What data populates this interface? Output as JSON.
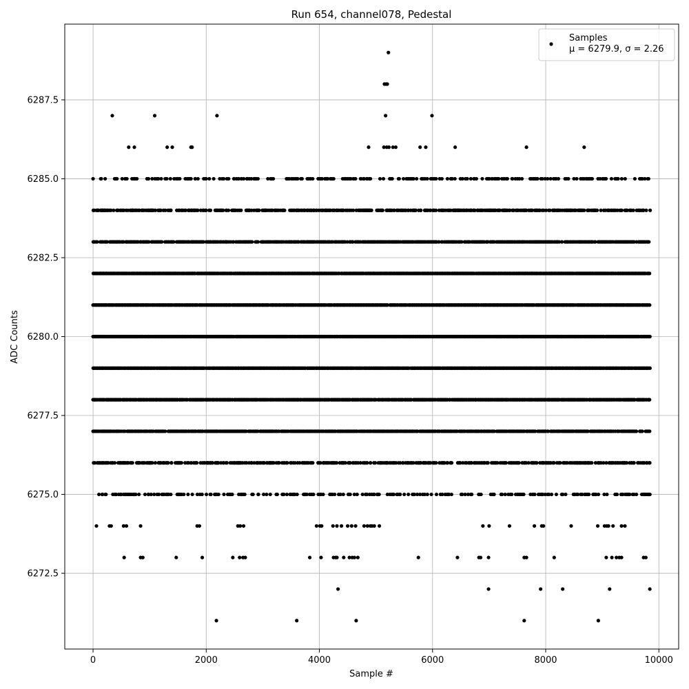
{
  "chart_data": {
    "type": "scatter",
    "title": "Run 654, channel078, Pedestal",
    "xlabel": "Sample #",
    "ylabel": "ADC Counts",
    "xlim": [
      -500,
      10350
    ],
    "ylim": [
      6270.1,
      6289.9
    ],
    "x_ticks": [
      0,
      2000,
      4000,
      6000,
      8000,
      10000
    ],
    "x_tick_labels": [
      "0",
      "2000",
      "4000",
      "6000",
      "8000",
      "10000"
    ],
    "y_ticks": [
      6272.5,
      6275.0,
      6277.5,
      6280.0,
      6282.5,
      6285.0,
      6287.5
    ],
    "y_tick_labels": [
      "6272.5",
      "6275.0",
      "6277.5",
      "6280.0",
      "6282.5",
      "6285.0",
      "6287.5"
    ],
    "grid": true,
    "legend_position": "top-right",
    "marker_color": "#000000",
    "series": [
      {
        "name": "Samples",
        "legend_label_prefix": "μ = 6279.9, ",
        "legend_label_sigma": "σ = 2.26",
        "n_samples": 9850,
        "value_range": [
          6271,
          6289
        ],
        "points": [
          [
            5220,
            6289
          ],
          [
            5150,
            6288
          ],
          [
            5180,
            6288
          ],
          [
            5200,
            6288
          ],
          [
            340,
            6287
          ],
          [
            1090,
            6287
          ],
          [
            2190,
            6287
          ],
          [
            5170,
            6287
          ],
          [
            5990,
            6287
          ],
          [
            630,
            6286
          ],
          [
            730,
            6286
          ],
          [
            1310,
            6286
          ],
          [
            1400,
            6286
          ],
          [
            1730,
            6286
          ],
          [
            1750,
            6286
          ],
          [
            4870,
            6286
          ],
          [
            5140,
            6286
          ],
          [
            5190,
            6286
          ],
          [
            5230,
            6286
          ],
          [
            5300,
            6286
          ],
          [
            5350,
            6286
          ],
          [
            5780,
            6286
          ],
          [
            5880,
            6286
          ],
          [
            6400,
            6286
          ],
          [
            7660,
            6286
          ],
          [
            8680,
            6286
          ],
          [
            2180,
            6271
          ],
          [
            3600,
            6271
          ],
          [
            4650,
            6271
          ],
          [
            7620,
            6271
          ],
          [
            8930,
            6271
          ],
          [
            4330,
            6272
          ],
          [
            6990,
            6272
          ],
          [
            7910,
            6272
          ],
          [
            8300,
            6272
          ],
          [
            9130,
            6272
          ],
          [
            9840,
            6272
          ],
          [
            550,
            6273
          ],
          [
            840,
            6273
          ],
          [
            880,
            6273
          ],
          [
            1470,
            6273
          ],
          [
            1930,
            6273
          ],
          [
            2470,
            6273
          ],
          [
            2590,
            6273
          ],
          [
            2650,
            6273
          ],
          [
            2690,
            6273
          ],
          [
            3830,
            6273
          ],
          [
            4030,
            6273
          ],
          [
            4250,
            6273
          ],
          [
            4290,
            6273
          ],
          [
            4310,
            6273
          ],
          [
            4430,
            6273
          ],
          [
            4530,
            6273
          ],
          [
            4580,
            6273
          ],
          [
            4620,
            6273
          ],
          [
            4680,
            6273
          ],
          [
            5750,
            6273
          ],
          [
            6440,
            6273
          ],
          [
            6820,
            6273
          ],
          [
            6850,
            6273
          ],
          [
            6990,
            6273
          ],
          [
            7620,
            6273
          ],
          [
            7660,
            6273
          ],
          [
            8150,
            6273
          ],
          [
            9070,
            6273
          ],
          [
            9170,
            6273
          ],
          [
            9250,
            6273
          ],
          [
            9300,
            6273
          ],
          [
            9340,
            6273
          ],
          [
            9730,
            6273
          ],
          [
            9770,
            6273
          ],
          [
            60,
            6274
          ],
          [
            290,
            6274
          ],
          [
            320,
            6274
          ],
          [
            540,
            6274
          ],
          [
            590,
            6274
          ],
          [
            840,
            6274
          ],
          [
            1840,
            6274
          ],
          [
            1880,
            6274
          ],
          [
            2560,
            6274
          ],
          [
            2600,
            6274
          ],
          [
            2660,
            6274
          ],
          [
            3950,
            6274
          ],
          [
            4010,
            6274
          ],
          [
            4040,
            6274
          ],
          [
            4240,
            6274
          ],
          [
            4310,
            6274
          ],
          [
            4390,
            6274
          ],
          [
            4500,
            6274
          ],
          [
            4570,
            6274
          ],
          [
            4640,
            6274
          ],
          [
            4790,
            6274
          ],
          [
            4850,
            6274
          ],
          [
            4900,
            6274
          ],
          [
            4930,
            6274
          ],
          [
            4970,
            6274
          ],
          [
            5060,
            6274
          ],
          [
            6890,
            6274
          ],
          [
            7000,
            6274
          ],
          [
            7360,
            6274
          ],
          [
            7800,
            6274
          ],
          [
            7930,
            6274
          ],
          [
            7960,
            6274
          ],
          [
            8450,
            6274
          ],
          [
            8920,
            6274
          ],
          [
            9040,
            6274
          ],
          [
            9080,
            6274
          ],
          [
            9110,
            6274
          ],
          [
            9190,
            6274
          ],
          [
            9340,
            6274
          ],
          [
            9400,
            6274
          ]
        ],
        "dense_levels": [
          {
            "value": 6285,
            "density": 0.28
          },
          {
            "value": 6284,
            "density": 0.55
          },
          {
            "value": 6283,
            "density": 0.75
          },
          {
            "value": 6282,
            "density": 0.96
          },
          {
            "value": 6281,
            "density": 0.96
          },
          {
            "value": 6280,
            "density": 0.97
          },
          {
            "value": 6279,
            "density": 0.96
          },
          {
            "value": 6278,
            "density": 0.9
          },
          {
            "value": 6277,
            "density": 0.78
          },
          {
            "value": 6276,
            "density": 0.5
          },
          {
            "value": 6275,
            "density": 0.3
          }
        ]
      }
    ]
  }
}
